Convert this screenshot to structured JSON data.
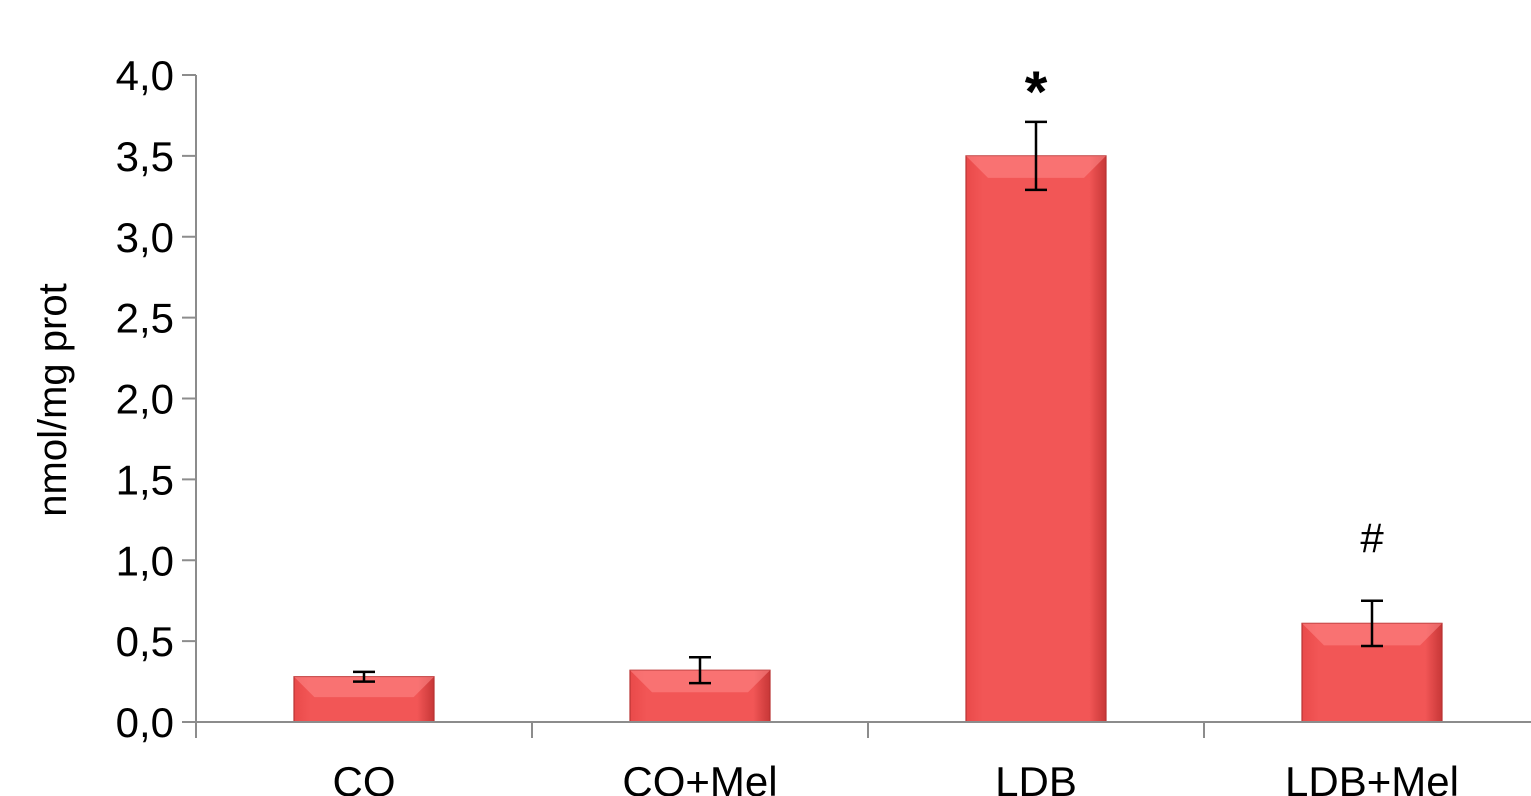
{
  "chart_data": {
    "type": "bar",
    "title": "",
    "xlabel": "",
    "ylabel": "nmol/mg prot",
    "ylim": [
      0,
      4
    ],
    "yticks": [
      "0,0",
      "0,5",
      "1,0",
      "1,5",
      "2,0",
      "2,5",
      "3,0",
      "3,5",
      "4,0"
    ],
    "ytick_values": [
      0,
      0.5,
      1.0,
      1.5,
      2.0,
      2.5,
      3.0,
      3.5,
      4.0
    ],
    "categories": [
      "CO",
      "CO+Mel",
      "LDB",
      "LDB+Mel"
    ],
    "values": [
      0.28,
      0.32,
      3.5,
      0.61
    ],
    "error": [
      0.03,
      0.08,
      0.21,
      0.14
    ],
    "annotations": [
      "",
      "",
      "*",
      "#"
    ],
    "bar_color": "#f25353",
    "grid": false,
    "legend": "none"
  }
}
